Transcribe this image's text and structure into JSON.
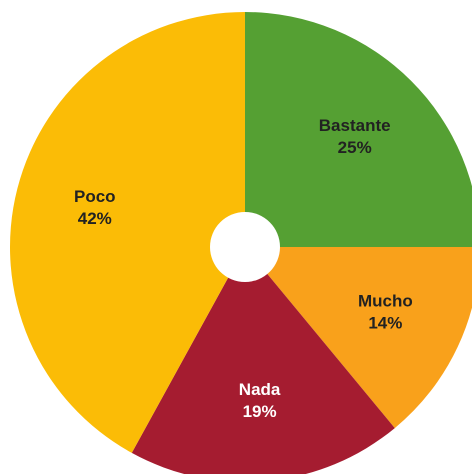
{
  "chart_data": {
    "type": "pie",
    "categories": [
      "Bastante",
      "Mucho",
      "Nada",
      "Poco"
    ],
    "values": [
      25,
      14,
      19,
      42
    ],
    "value_labels": [
      "25%",
      "14%",
      "19%",
      "42%"
    ],
    "colors": [
      "#55a033",
      "#f9a11b",
      "#a51c30",
      "#fbbc06"
    ],
    "start_angle": 0,
    "direction": "clockwise"
  }
}
